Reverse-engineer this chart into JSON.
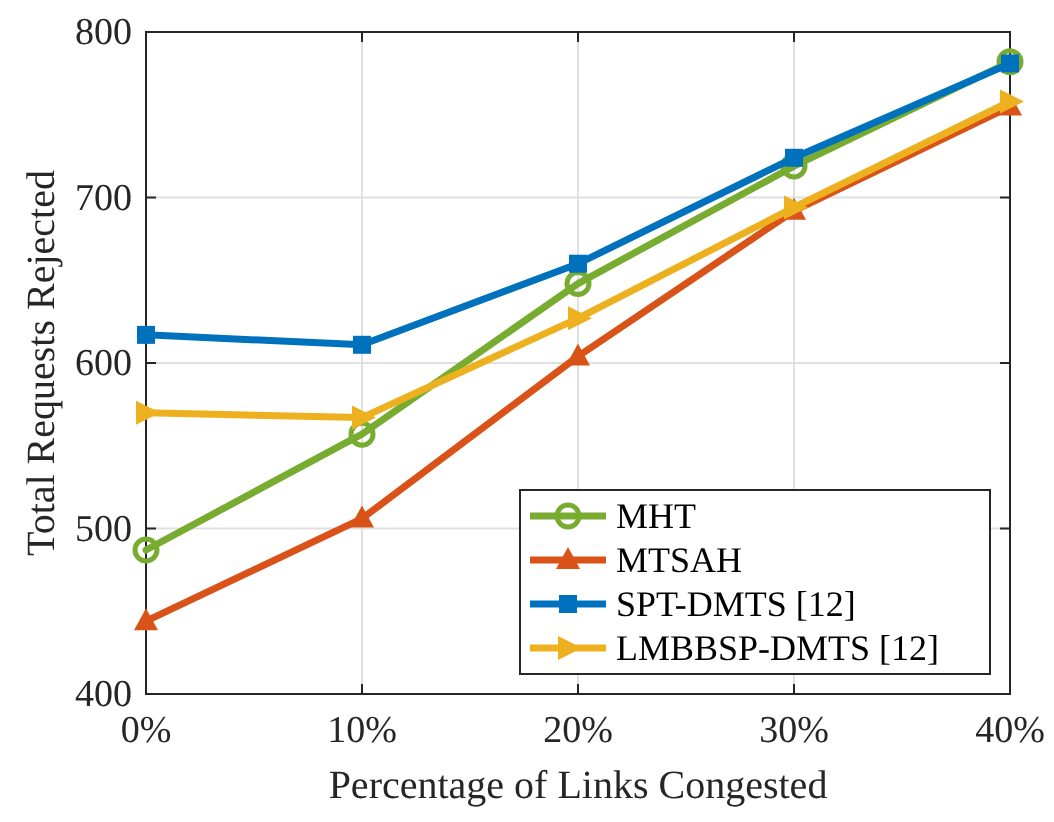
{
  "chart_data": {
    "type": "line",
    "xlabel": "Percentage of Links Congested",
    "ylabel": "Total Requests Rejected",
    "x": [
      0,
      10,
      20,
      30,
      40
    ],
    "xlim": [
      0,
      40
    ],
    "xticks": [
      {
        "value": 0,
        "label": "0%"
      },
      {
        "value": 10,
        "label": "10%"
      },
      {
        "value": 20,
        "label": "20%"
      },
      {
        "value": 30,
        "label": "30%"
      },
      {
        "value": 40,
        "label": "40%"
      }
    ],
    "ylim": [
      400,
      800
    ],
    "yticks": [
      400,
      500,
      600,
      700,
      800
    ],
    "grid": true,
    "legend": "bottom right",
    "line_style": "solid",
    "series": [
      {
        "name": "MHT",
        "color": "#77ac30",
        "marker": "circle",
        "values": [
          487,
          557,
          648,
          719,
          782
        ]
      },
      {
        "name": "MTSAH",
        "color": "#d95319",
        "marker": "triangle",
        "values": [
          444,
          506,
          604,
          692,
          755
        ]
      },
      {
        "name": "SPT-DMTS [12]",
        "color": "#0072bd",
        "marker": "square",
        "values": [
          617,
          611,
          660,
          724,
          781
        ]
      },
      {
        "name": "LMBBSP-DMTS [12]",
        "color": "#edb120",
        "marker": "triangle-right",
        "values": [
          570,
          567,
          627,
          694,
          758
        ]
      }
    ]
  }
}
